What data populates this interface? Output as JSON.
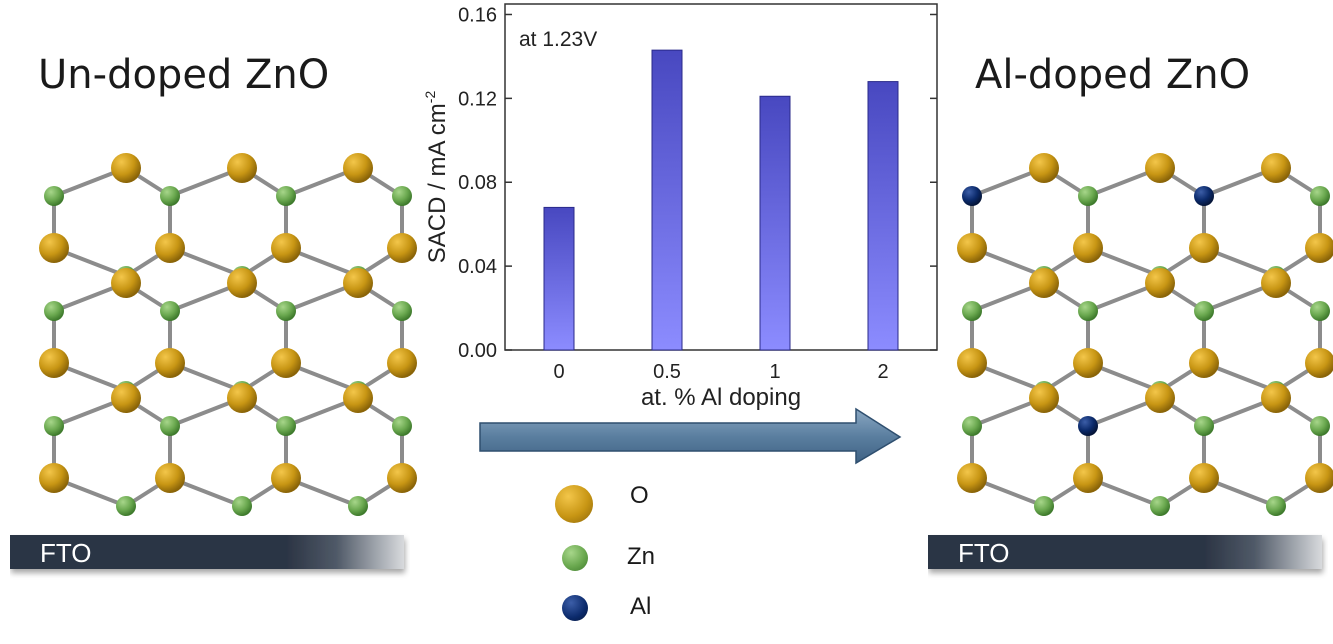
{
  "left_panel": {
    "title": "Un-doped ZnO",
    "substrate_label": "FTO"
  },
  "right_panel": {
    "title": "Al-doped ZnO",
    "substrate_label": "FTO"
  },
  "legend": [
    {
      "label": "O",
      "color": "#c89614"
    },
    {
      "label": "Zn",
      "color": "#6aa84f"
    },
    {
      "label": "Al",
      "color": "#0b2a6b"
    }
  ],
  "arrow": {
    "color": "#5b7fa0"
  },
  "chart_data": {
    "type": "bar",
    "categories": [
      "0",
      "0.5",
      "1",
      "2"
    ],
    "values": [
      0.068,
      0.143,
      0.121,
      0.128
    ],
    "ylim": [
      0,
      0.165
    ],
    "yticks": [
      "0.00",
      "0.04",
      "0.08",
      "0.12",
      "0.16"
    ],
    "ytick_values": [
      0,
      0.04,
      0.08,
      0.12,
      0.16
    ],
    "xlabel": "at. % Al doping",
    "ylabel": "SACD / mA cm",
    "ylabel_sup": "-2",
    "annotation": "at 1.23V",
    "bar_color_top": "#4848c0",
    "bar_color_bottom": "#8c8cff",
    "grid": false
  }
}
